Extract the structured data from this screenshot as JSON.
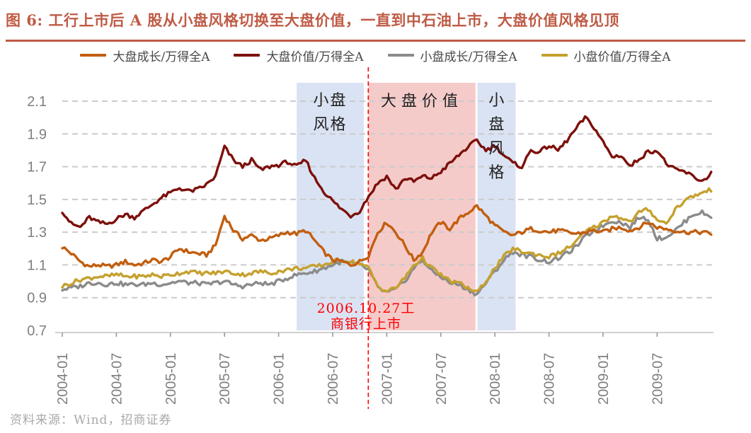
{
  "header": {
    "title": "图 6:  工行上市后 A 股从小盘风格切换至大盘价值，一直到中石油上市，大盘价值风格见顶",
    "accent_color": "#BF5B45"
  },
  "footer": {
    "source": "资料来源：Wind，招商证券",
    "color": "#A9A9A9"
  },
  "chart_data": {
    "type": "line",
    "title": "工行上市后A股从小盘风格切换至大盘价值，一直到中石油上市，大盘价值风格见顶",
    "grid": "horizontal-dashed",
    "legend_position": "top",
    "ylim": [
      0.7,
      2.1
    ],
    "y_ticks": [
      0.7,
      0.9,
      1.1,
      1.3,
      1.5,
      1.7,
      1.9,
      2.1
    ],
    "x_start": "2004-01",
    "x_end": "2010-01",
    "x_tick_labels": [
      "2004-01",
      "2004-07",
      "2005-01",
      "2005-07",
      "2006-01",
      "2006-07",
      "2007-01",
      "2007-07",
      "2008-01",
      "2008-07",
      "2009-01",
      "2009-07"
    ],
    "x_months_per_tick": 6,
    "axis_label_color": "#7F7F7F",
    "grid_color": "#CBCBCB",
    "axis_line_color": "#C0C0C0",
    "series": [
      {
        "name": "大盘成长/万得全A",
        "color": "#C25E0E",
        "values": [
          1.21,
          1.17,
          1.12,
          1.09,
          1.1,
          1.09,
          1.1,
          1.12,
          1.1,
          1.11,
          1.13,
          1.12,
          1.15,
          1.2,
          1.18,
          1.17,
          1.16,
          1.22,
          1.4,
          1.31,
          1.26,
          1.28,
          1.25,
          1.26,
          1.28,
          1.3,
          1.29,
          1.31,
          1.25,
          1.18,
          1.13,
          1.12,
          1.1,
          1.12,
          1.16,
          1.3,
          1.36,
          1.3,
          1.22,
          1.13,
          1.18,
          1.3,
          1.36,
          1.32,
          1.38,
          1.42,
          1.46,
          1.4,
          1.34,
          1.3,
          1.28,
          1.3,
          1.32,
          1.31,
          1.3,
          1.31,
          1.3,
          1.29,
          1.3,
          1.31,
          1.3,
          1.32,
          1.33,
          1.31,
          1.33,
          1.36,
          1.33,
          1.32,
          1.31,
          1.3,
          1.3,
          1.3,
          1.29
        ]
      },
      {
        "name": "大盘价值/万得全A",
        "color": "#7D100C",
        "values": [
          1.43,
          1.35,
          1.33,
          1.39,
          1.36,
          1.35,
          1.38,
          1.41,
          1.39,
          1.43,
          1.47,
          1.51,
          1.54,
          1.57,
          1.55,
          1.56,
          1.59,
          1.64,
          1.82,
          1.74,
          1.7,
          1.74,
          1.68,
          1.7,
          1.71,
          1.73,
          1.7,
          1.74,
          1.63,
          1.55,
          1.49,
          1.44,
          1.4,
          1.43,
          1.52,
          1.6,
          1.64,
          1.56,
          1.63,
          1.61,
          1.64,
          1.63,
          1.67,
          1.72,
          1.77,
          1.82,
          1.86,
          1.8,
          1.83,
          1.77,
          1.72,
          1.7,
          1.8,
          1.79,
          1.83,
          1.8,
          1.86,
          1.93,
          2.0,
          1.94,
          1.85,
          1.76,
          1.77,
          1.7,
          1.75,
          1.79,
          1.8,
          1.72,
          1.68,
          1.67,
          1.64,
          1.61,
          1.66
        ]
      },
      {
        "name": "小盘成长/万得全A",
        "color": "#8B8B8B",
        "values": [
          0.95,
          0.96,
          0.97,
          0.99,
          0.99,
          0.98,
          0.99,
          0.98,
          0.98,
          0.98,
          0.99,
          0.98,
          0.99,
          1.0,
          0.99,
          0.99,
          0.98,
          0.99,
          1.0,
          0.98,
          0.97,
          0.98,
          0.99,
          0.98,
          1.0,
          1.02,
          1.04,
          1.05,
          1.06,
          1.08,
          1.1,
          1.12,
          1.11,
          1.1,
          1.07,
          0.96,
          0.93,
          0.95,
          1.0,
          1.08,
          1.13,
          1.06,
          1.03,
          0.99,
          0.98,
          0.95,
          0.92,
          0.99,
          1.06,
          1.13,
          1.18,
          1.16,
          1.15,
          1.13,
          1.12,
          1.14,
          1.17,
          1.21,
          1.27,
          1.31,
          1.34,
          1.37,
          1.36,
          1.33,
          1.39,
          1.38,
          1.26,
          1.27,
          1.31,
          1.36,
          1.41,
          1.42,
          1.39
        ]
      },
      {
        "name": "小盘价值/万得全A",
        "color": "#C5A12F",
        "values": [
          0.97,
          0.99,
          1.01,
          1.02,
          1.03,
          1.03,
          1.04,
          1.03,
          1.03,
          1.03,
          1.04,
          1.03,
          1.04,
          1.05,
          1.06,
          1.05,
          1.05,
          1.05,
          1.06,
          1.05,
          1.04,
          1.05,
          1.06,
          1.05,
          1.06,
          1.07,
          1.08,
          1.08,
          1.09,
          1.1,
          1.12,
          1.13,
          1.12,
          1.11,
          1.08,
          0.97,
          0.94,
          0.96,
          1.02,
          1.1,
          1.14,
          1.08,
          1.04,
          1.0,
          0.99,
          0.96,
          0.93,
          1.0,
          1.08,
          1.15,
          1.2,
          1.18,
          1.17,
          1.16,
          1.15,
          1.17,
          1.2,
          1.24,
          1.3,
          1.33,
          1.36,
          1.4,
          1.39,
          1.36,
          1.42,
          1.44,
          1.38,
          1.35,
          1.44,
          1.49,
          1.52,
          1.54,
          1.56
        ]
      }
    ],
    "regions": [
      {
        "id": "small-cap-style-1",
        "label": "小盘风格",
        "label_lines": [
          "小盘",
          "风格"
        ],
        "layout": "two-line",
        "from_month": 26.0,
        "to_month": 33.45,
        "fill": "#DAE3F3",
        "label_color": "#222222"
      },
      {
        "id": "large-cap-value",
        "label": "大盘价值",
        "label_lines": [
          "大盘价值"
        ],
        "layout": "one-line",
        "from_month": 33.95,
        "to_month": 45.85,
        "fill": "#F5CBCA",
        "label_color": "#222222"
      },
      {
        "id": "small-cap-style-2",
        "label": "小盘风格",
        "label_lines": [
          "小",
          "盘",
          "风",
          "格"
        ],
        "layout": "vertical",
        "from_month": 46.05,
        "to_month": 50.3,
        "fill": "#DAE3F3",
        "label_color": "#222222"
      }
    ],
    "event_line": {
      "month": 33.95,
      "color": "#FF0000",
      "label_lines": [
        "2006.10.27工",
        "商银行上市"
      ],
      "label": "2006.10.27工商银行上市"
    }
  }
}
